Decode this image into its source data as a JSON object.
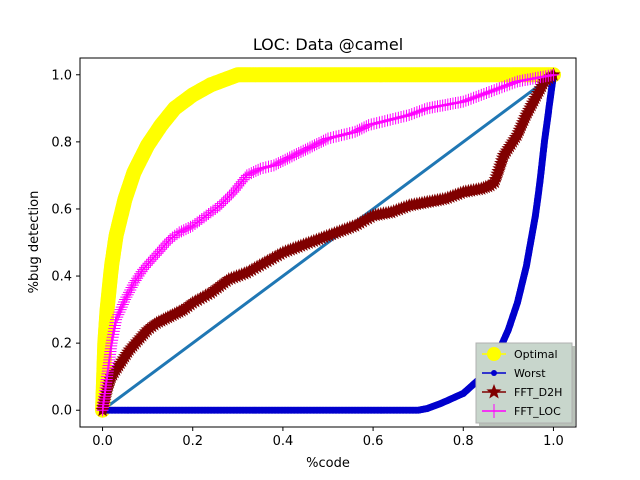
{
  "chart_data": {
    "type": "line",
    "title": "LOC: Data @camel",
    "xlabel": "%code",
    "ylabel": "%bug detection",
    "xlim": [
      -0.05,
      1.05
    ],
    "ylim": [
      -0.05,
      1.05
    ],
    "xticks": [
      "0.0",
      "0.2",
      "0.4",
      "0.6",
      "0.8",
      "1.0"
    ],
    "yticks": [
      "0.0",
      "0.2",
      "0.4",
      "0.6",
      "0.8",
      "1.0"
    ],
    "grid": false,
    "legend_position": "lower-right",
    "series": [
      {
        "name": "",
        "color": "#1f77b4",
        "marker": "none",
        "x": [
          0.0,
          1.0
        ],
        "y": [
          0.0,
          1.0
        ]
      },
      {
        "name": "Optimal",
        "color": "#ffff00",
        "marker": "circle",
        "x": [
          0.0,
          0.005,
          0.01,
          0.02,
          0.03,
          0.05,
          0.07,
          0.1,
          0.13,
          0.16,
          0.2,
          0.24,
          0.28,
          0.3,
          0.32,
          0.4,
          0.5,
          0.6,
          0.7,
          0.8,
          0.9,
          1.0
        ],
        "y": [
          0.0,
          0.2,
          0.3,
          0.43,
          0.52,
          0.63,
          0.71,
          0.79,
          0.85,
          0.9,
          0.94,
          0.97,
          0.99,
          1.0,
          1.0,
          1.0,
          1.0,
          1.0,
          1.0,
          1.0,
          1.0,
          1.0
        ]
      },
      {
        "name": "Worst",
        "color": "#0000cd",
        "marker": "circle",
        "x": [
          0.0,
          0.1,
          0.2,
          0.3,
          0.4,
          0.5,
          0.6,
          0.7,
          0.72,
          0.75,
          0.8,
          0.85,
          0.88,
          0.9,
          0.92,
          0.94,
          0.96,
          0.97,
          0.98,
          0.99,
          1.0
        ],
        "y": [
          0.0,
          0.0,
          0.0,
          0.0,
          0.0,
          0.0,
          0.0,
          0.0,
          0.005,
          0.02,
          0.05,
          0.11,
          0.18,
          0.24,
          0.32,
          0.43,
          0.58,
          0.68,
          0.8,
          0.9,
          1.0
        ]
      },
      {
        "name": "FFT_D2H",
        "color": "#800000",
        "marker": "star",
        "x": [
          0.0,
          0.01,
          0.02,
          0.04,
          0.06,
          0.08,
          0.1,
          0.12,
          0.15,
          0.18,
          0.2,
          0.24,
          0.28,
          0.32,
          0.36,
          0.4,
          0.44,
          0.48,
          0.52,
          0.56,
          0.6,
          0.64,
          0.68,
          0.72,
          0.76,
          0.8,
          0.84,
          0.86,
          0.87,
          0.88,
          0.89,
          0.9,
          0.92,
          0.94,
          0.96,
          0.98,
          1.0
        ],
        "y": [
          0.0,
          0.06,
          0.1,
          0.14,
          0.18,
          0.21,
          0.24,
          0.26,
          0.28,
          0.3,
          0.32,
          0.35,
          0.39,
          0.41,
          0.44,
          0.47,
          0.49,
          0.51,
          0.53,
          0.55,
          0.58,
          0.59,
          0.61,
          0.62,
          0.63,
          0.65,
          0.66,
          0.67,
          0.68,
          0.72,
          0.76,
          0.78,
          0.82,
          0.88,
          0.93,
          0.98,
          1.0
        ]
      },
      {
        "name": "FFT_LOC",
        "color": "#ff00ff",
        "marker": "plus",
        "x": [
          0.0,
          0.01,
          0.02,
          0.03,
          0.05,
          0.07,
          0.09,
          0.11,
          0.13,
          0.15,
          0.17,
          0.2,
          0.23,
          0.26,
          0.29,
          0.32,
          0.35,
          0.38,
          0.41,
          0.44,
          0.47,
          0.5,
          0.53,
          0.56,
          0.59,
          0.62,
          0.65,
          0.68,
          0.72,
          0.76,
          0.8,
          0.84,
          0.88,
          0.92,
          0.96,
          1.0
        ],
        "y": [
          0.0,
          0.1,
          0.2,
          0.27,
          0.33,
          0.38,
          0.42,
          0.45,
          0.48,
          0.51,
          0.53,
          0.55,
          0.58,
          0.61,
          0.65,
          0.7,
          0.72,
          0.73,
          0.75,
          0.77,
          0.79,
          0.81,
          0.82,
          0.83,
          0.85,
          0.86,
          0.87,
          0.88,
          0.9,
          0.91,
          0.92,
          0.94,
          0.96,
          0.98,
          0.99,
          1.0
        ]
      }
    ]
  }
}
